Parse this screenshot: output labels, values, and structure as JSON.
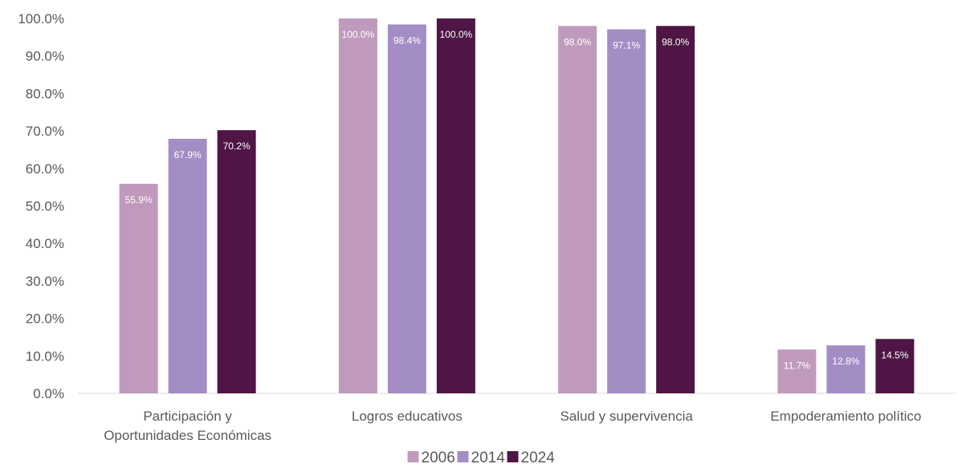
{
  "chart_data": {
    "type": "bar",
    "title": "",
    "xlabel": "",
    "ylabel": "",
    "ylim": [
      0,
      100
    ],
    "y_ticks": [
      "0.0%",
      "10.0%",
      "20.0%",
      "30.0%",
      "40.0%",
      "50.0%",
      "60.0%",
      "70.0%",
      "80.0%",
      "90.0%",
      "100.0%"
    ],
    "y_tick_values": [
      0,
      10,
      20,
      30,
      40,
      50,
      60,
      70,
      80,
      90,
      100
    ],
    "categories": [
      [
        "Participación y",
        "Oportunidades Económicas"
      ],
      [
        "Logros educativos"
      ],
      [
        "Salud y supervivencia"
      ],
      [
        "Empoderamiento político"
      ]
    ],
    "series": [
      {
        "name": "2006",
        "color": "#C09ABC",
        "values": [
          55.9,
          100.0,
          98.0,
          11.7
        ],
        "labels": [
          "55.9%",
          "100.0%",
          "98.0%",
          "11.7%"
        ]
      },
      {
        "name": "2014",
        "color": "#A48DC5",
        "values": [
          67.9,
          98.4,
          97.1,
          12.8
        ],
        "labels": [
          "67.9%",
          "98.4%",
          "97.1%",
          "12.8%"
        ]
      },
      {
        "name": "2024",
        "color": "#4E1545",
        "values": [
          70.2,
          100.0,
          98.0,
          14.5
        ],
        "labels": [
          "70.2%",
          "100.0%",
          "98.0%",
          "14.5%"
        ]
      }
    ],
    "grid": false,
    "legend_position": "bottom-center"
  }
}
